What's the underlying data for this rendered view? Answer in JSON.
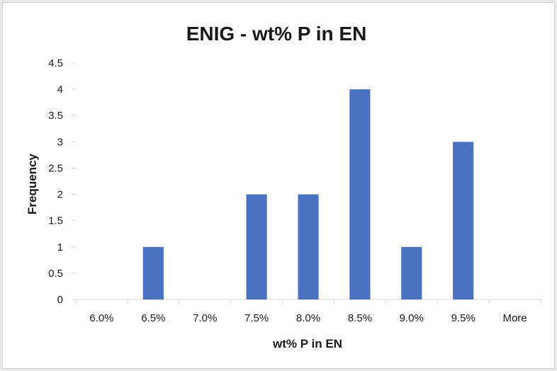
{
  "chart_data": {
    "type": "bar",
    "title": "ENIG - wt% P in EN",
    "xlabel": "wt% P in EN",
    "ylabel": "Frequency",
    "categories": [
      "6.0%",
      "6.5%",
      "7.0%",
      "7.5%",
      "8.0%",
      "8.5%",
      "9.0%",
      "9.5%",
      "More"
    ],
    "values": [
      0,
      1,
      0,
      2,
      2,
      4,
      1,
      3,
      0
    ],
    "ylim": [
      0,
      4.5
    ],
    "yticks": [
      "0",
      "0.5",
      "1",
      "1.5",
      "2",
      "2.5",
      "3",
      "3.5",
      "4",
      "4.5"
    ],
    "grid": false,
    "legend": "none",
    "bar_color": "#4a72c0"
  }
}
